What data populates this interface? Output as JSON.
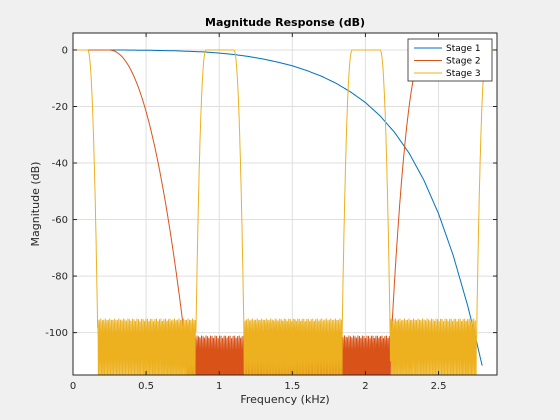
{
  "chart_data": {
    "type": "line",
    "title": "Magnitude Response (dB)",
    "xlabel": "Frequency (kHz)",
    "ylabel": "Magnitude (dB)",
    "xlim": [
      0,
      2.9
    ],
    "ylim": [
      -115,
      6
    ],
    "xticks": [
      0,
      0.5,
      1,
      1.5,
      2,
      2.5
    ],
    "xtick_labels": [
      "0",
      "0.5",
      "1",
      "1.5",
      "2",
      "2.5"
    ],
    "yticks": [
      0,
      -20,
      -40,
      -60,
      -80,
      -100
    ],
    "ytick_labels": [
      "0",
      "-20",
      "-40",
      "-60",
      "-80",
      "-100"
    ],
    "grid": true,
    "legend_position": "top-right",
    "series": [
      {
        "name": "Stage 1",
        "color": "#0072BD",
        "x": [
          0,
          0.3,
          0.5,
          0.7,
          0.9,
          1.0,
          1.1,
          1.2,
          1.3,
          1.4,
          1.5,
          1.6,
          1.7,
          1.8,
          1.9,
          2.0,
          2.1,
          2.2,
          2.3,
          2.4,
          2.5,
          2.6,
          2.7,
          2.75,
          2.8
        ],
        "values": [
          0,
          0,
          -0.1,
          -0.3,
          -0.7,
          -1.1,
          -1.6,
          -2.3,
          -3.2,
          -4.3,
          -5.6,
          -7.3,
          -9.3,
          -11.8,
          -14.9,
          -18.6,
          -23.3,
          -29.2,
          -36.6,
          -46.1,
          -57.9,
          -72.6,
          -90.6,
          -101,
          -112
        ]
      },
      {
        "name": "Stage 2",
        "color": "#D95319",
        "passbands": [
          [
            0,
            0.24
          ],
          [
            2.41,
            2.9
          ]
        ],
        "transitions": [
          [
            0.24,
            0.78
          ],
          [
            2.17,
            2.41
          ]
        ],
        "stopband": [
          0.78,
          2.17
        ],
        "stopband_level": -97
      },
      {
        "name": "Stage 3",
        "color": "#EDB120",
        "passbands": [
          [
            0,
            0.1
          ],
          [
            0.91,
            1.1
          ],
          [
            1.91,
            2.1
          ],
          [
            2.83,
            2.9
          ]
        ],
        "transitions": [
          [
            0.1,
            0.17
          ],
          [
            0.84,
            0.91
          ],
          [
            1.1,
            1.17
          ],
          [
            1.84,
            1.91
          ],
          [
            2.1,
            2.17
          ],
          [
            2.76,
            2.83
          ]
        ],
        "stopbands": [
          [
            0.17,
            0.84
          ],
          [
            1.17,
            1.84
          ],
          [
            2.17,
            2.76
          ]
        ],
        "stopband_level": -91
      }
    ]
  }
}
